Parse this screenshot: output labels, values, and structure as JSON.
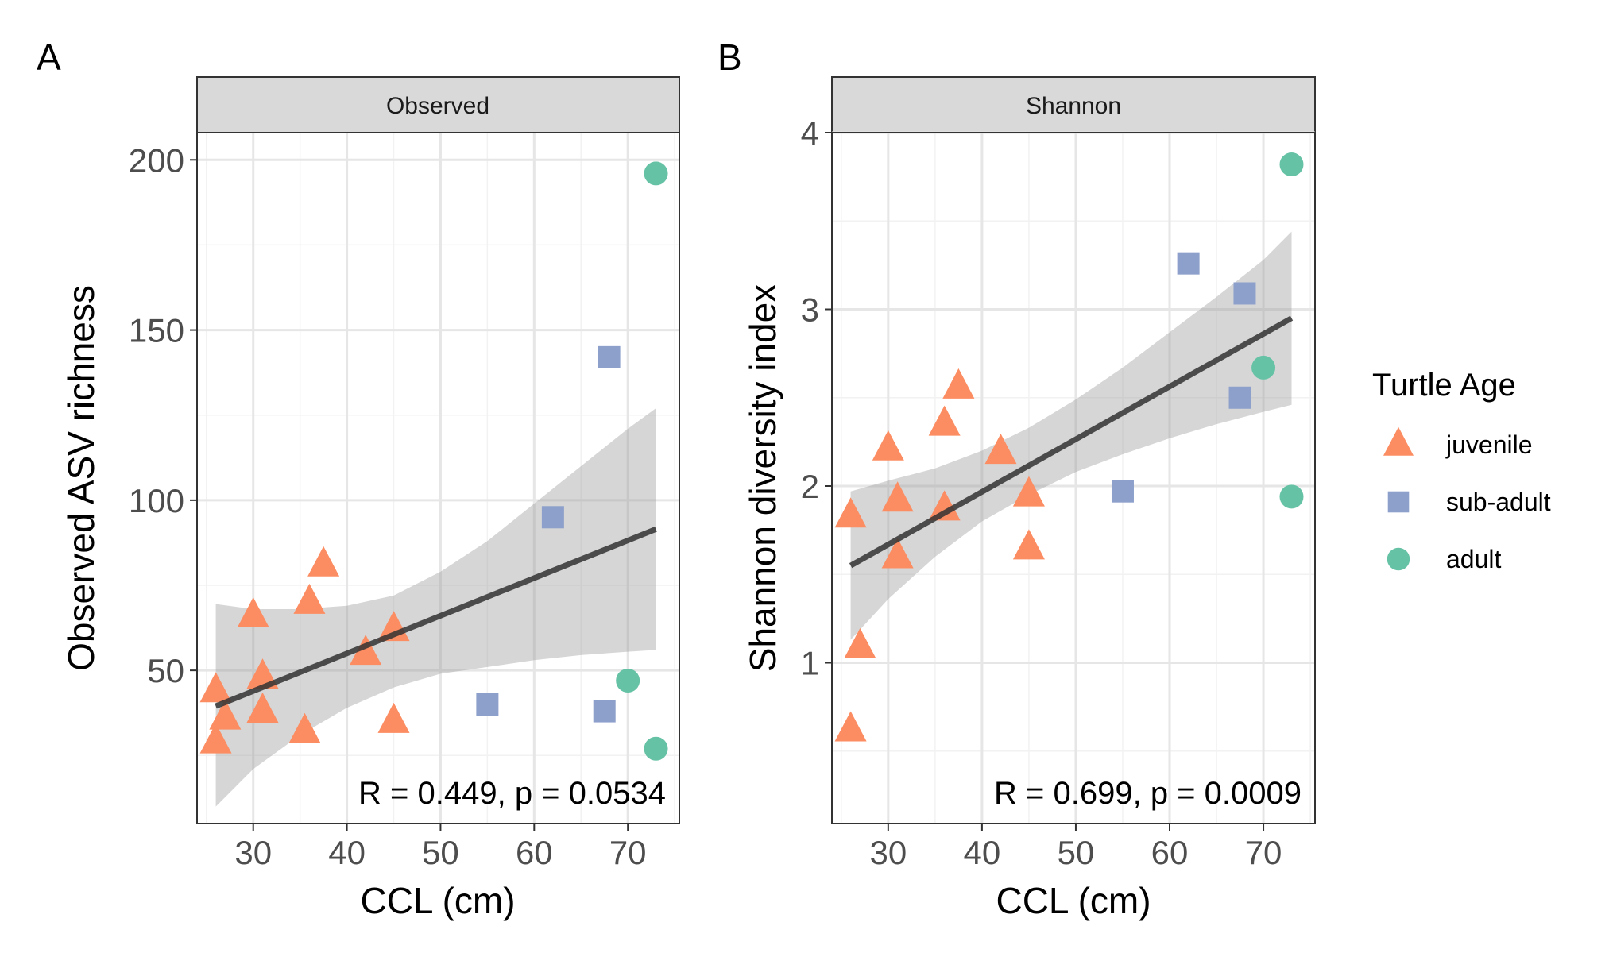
{
  "chart_data": [
    {
      "type": "scatter",
      "panel_label": "A",
      "facet": "Observed",
      "xlabel": "CCL (cm)",
      "ylabel": "Observed ASV richness",
      "xlim": [
        24,
        75.5
      ],
      "ylim": [
        5,
        208
      ],
      "xticks": [
        30,
        40,
        50,
        60,
        70
      ],
      "yticks": [
        50,
        100,
        150,
        200
      ],
      "grid": true,
      "annotation": "R = 0.449, p = 0.0534",
      "fit": {
        "x": [
          26,
          73
        ],
        "y": [
          39.5,
          91.5
        ],
        "ci_x": [
          26,
          30,
          35,
          40,
          45,
          50,
          55,
          60,
          65,
          70,
          73
        ],
        "ci_lower": [
          10,
          21,
          31,
          39,
          45,
          49,
          51,
          53,
          54.5,
          55.5,
          56
        ],
        "ci_upper": [
          69.5,
          68,
          68,
          69,
          72,
          79,
          88,
          99,
          110,
          121,
          127
        ]
      },
      "series": [
        {
          "name": "juvenile",
          "shape": "triangle",
          "color": "#fc8d62",
          "x": [
            26,
            26,
            27,
            30,
            31,
            31,
            35.5,
            36,
            37.5,
            42,
            45,
            45
          ],
          "y": [
            44,
            29,
            36,
            66,
            48,
            38,
            32,
            70,
            81,
            55,
            62,
            35
          ]
        },
        {
          "name": "sub-adult",
          "shape": "square",
          "color": "#8da0cb",
          "x": [
            55,
            62,
            67.5,
            68
          ],
          "y": [
            40,
            95,
            38,
            142
          ]
        },
        {
          "name": "adult",
          "shape": "circle",
          "color": "#66c2a5",
          "x": [
            70,
            73,
            73
          ],
          "y": [
            47,
            27,
            196
          ]
        }
      ]
    },
    {
      "type": "scatter",
      "panel_label": "B",
      "facet": "Shannon",
      "xlabel": "CCL (cm)",
      "ylabel": "Shannon diversity index",
      "xlim": [
        24,
        75.5
      ],
      "ylim": [
        0.09,
        4.0
      ],
      "xticks": [
        30,
        40,
        50,
        60,
        70
      ],
      "yticks": [
        1,
        2,
        3,
        4
      ],
      "grid": true,
      "annotation": "R = 0.699, p = 0.0009",
      "fit": {
        "x": [
          26,
          73
        ],
        "y": [
          1.55,
          2.95
        ],
        "ci_x": [
          26,
          30,
          35,
          40,
          45,
          50,
          55,
          60,
          65,
          70,
          73
        ],
        "ci_lower": [
          1.13,
          1.36,
          1.6,
          1.8,
          1.95,
          2.08,
          2.18,
          2.27,
          2.35,
          2.42,
          2.46
        ],
        "ci_upper": [
          1.97,
          2.03,
          2.1,
          2.2,
          2.33,
          2.49,
          2.67,
          2.87,
          3.07,
          3.28,
          3.44
        ]
      },
      "series": [
        {
          "name": "juvenile",
          "shape": "triangle",
          "color": "#fc8d62",
          "x": [
            26,
            26,
            27,
            30,
            31,
            31,
            36,
            36,
            37.5,
            42,
            45,
            45
          ],
          "y": [
            0.62,
            1.83,
            1.09,
            2.21,
            1.92,
            1.6,
            1.87,
            2.35,
            2.56,
            2.19,
            1.95,
            1.65
          ]
        },
        {
          "name": "sub-adult",
          "shape": "square",
          "color": "#8da0cb",
          "x": [
            55,
            62,
            67.5,
            68
          ],
          "y": [
            1.97,
            3.26,
            2.5,
            3.09
          ]
        },
        {
          "name": "adult",
          "shape": "circle",
          "color": "#66c2a5",
          "x": [
            70,
            73,
            73
          ],
          "y": [
            2.67,
            1.94,
            3.82
          ]
        }
      ]
    }
  ],
  "legend": {
    "title": "Turtle Age",
    "position": "right",
    "items": [
      {
        "label": "juvenile",
        "shape": "triangle",
        "color": "#fc8d62"
      },
      {
        "label": "sub-adult",
        "shape": "square",
        "color": "#8da0cb"
      },
      {
        "label": "adult",
        "shape": "circle",
        "color": "#66c2a5"
      }
    ]
  }
}
